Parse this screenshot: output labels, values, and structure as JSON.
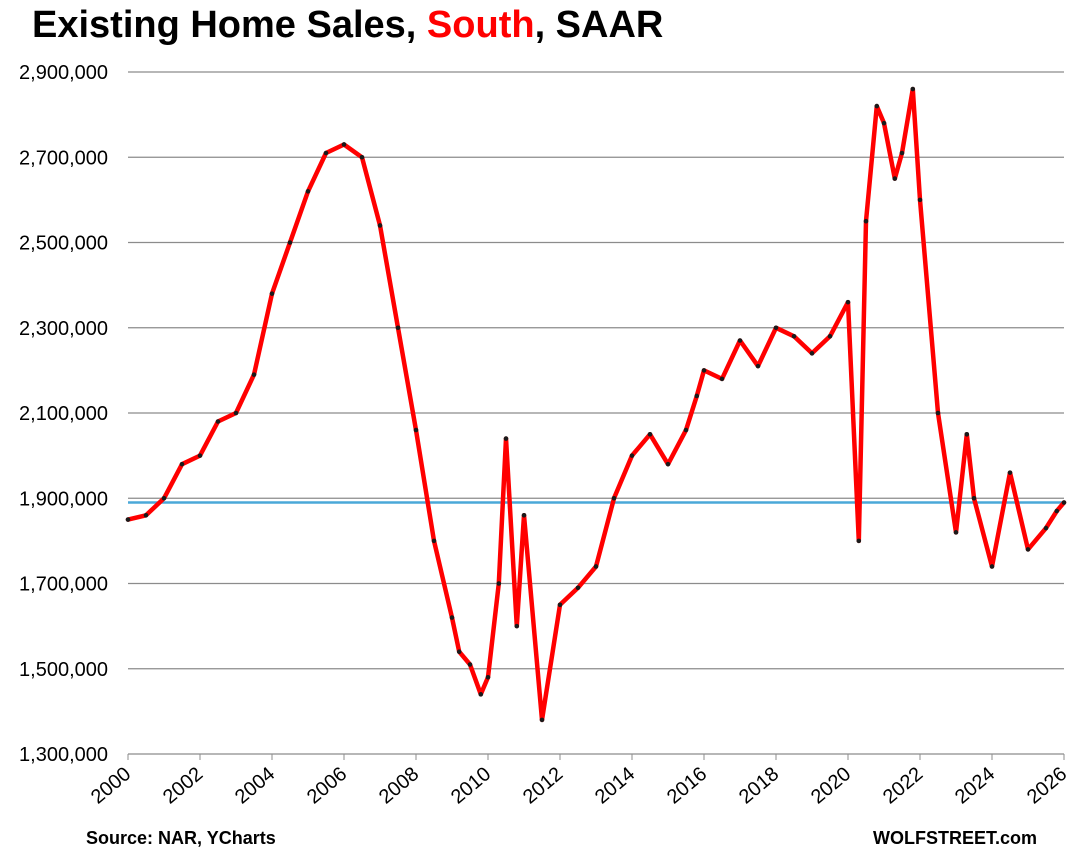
{
  "title": {
    "prefix": "Existing Home Sales, ",
    "highlight": "South",
    "suffix": ", SAAR"
  },
  "source": "Source: NAR, YCharts",
  "brand": "WOLFSTREET.com",
  "colors": {
    "series": "#ff0000",
    "markers": "#1a1a1a",
    "reference_line": "#4aa8d8",
    "grid": "#8c8c8c",
    "highlight": "#ff0000"
  },
  "chart_data": {
    "type": "line",
    "title": "Existing Home Sales, South, SAAR",
    "ylim": [
      1300000,
      2900000
    ],
    "xlim": [
      2000,
      2026
    ],
    "y_ticks": [
      1300000,
      1500000,
      1700000,
      1900000,
      2100000,
      2300000,
      2500000,
      2700000,
      2900000
    ],
    "y_tick_labels": [
      "1,300,000",
      "1,500,000",
      "1,700,000",
      "1,900,000",
      "2,100,000",
      "2,300,000",
      "2,500,000",
      "2,700,000",
      "2,900,000"
    ],
    "x_tick_labels": [
      "2000",
      "2002",
      "2004",
      "2006",
      "2008",
      "2010",
      "2012",
      "2014",
      "2016",
      "2018",
      "2020",
      "2022",
      "2024",
      "2026"
    ],
    "grid": true,
    "reference_line": 1890000,
    "series": [
      {
        "x": [
          2000.0,
          2000.5,
          2001.0,
          2001.5,
          2002.0,
          2002.5,
          2003.0,
          2003.5,
          2004.0,
          2004.5,
          2005.0,
          2005.5,
          2006.0,
          2006.5,
          2007.0,
          2007.5,
          2008.0,
          2008.5,
          2009.0,
          2009.2,
          2009.5,
          2009.8,
          2010.0,
          2010.3,
          2010.5,
          2010.8,
          2011.0,
          2011.5,
          2012.0,
          2012.5,
          2013.0,
          2013.5,
          2014.0,
          2014.5,
          2015.0,
          2015.5,
          2015.8,
          2016.0,
          2016.5,
          2017.0,
          2017.5,
          2018.0,
          2018.5,
          2019.0,
          2019.5,
          2020.0,
          2020.3,
          2020.5,
          2020.8,
          2021.0,
          2021.3,
          2021.5,
          2021.8,
          2022.0,
          2022.5,
          2023.0,
          2023.3,
          2023.5,
          2024.0,
          2024.5,
          2025.0,
          2025.5,
          2025.8,
          2026.0
        ],
        "values": [
          1850000,
          1860000,
          1900000,
          1980000,
          2000000,
          2080000,
          2100000,
          2190000,
          2380000,
          2500000,
          2620000,
          2710000,
          2730000,
          2700000,
          2540000,
          2300000,
          2060000,
          1800000,
          1620000,
          1540000,
          1510000,
          1440000,
          1480000,
          1700000,
          2040000,
          1600000,
          1860000,
          1380000,
          1650000,
          1690000,
          1740000,
          1900000,
          2000000,
          2050000,
          1980000,
          2060000,
          2140000,
          2200000,
          2180000,
          2270000,
          2210000,
          2300000,
          2280000,
          2240000,
          2280000,
          2360000,
          1800000,
          2550000,
          2820000,
          2780000,
          2650000,
          2710000,
          2860000,
          2600000,
          2100000,
          1820000,
          2050000,
          1900000,
          1740000,
          1960000,
          1780000,
          1830000,
          1870000,
          1890000
        ]
      }
    ]
  }
}
